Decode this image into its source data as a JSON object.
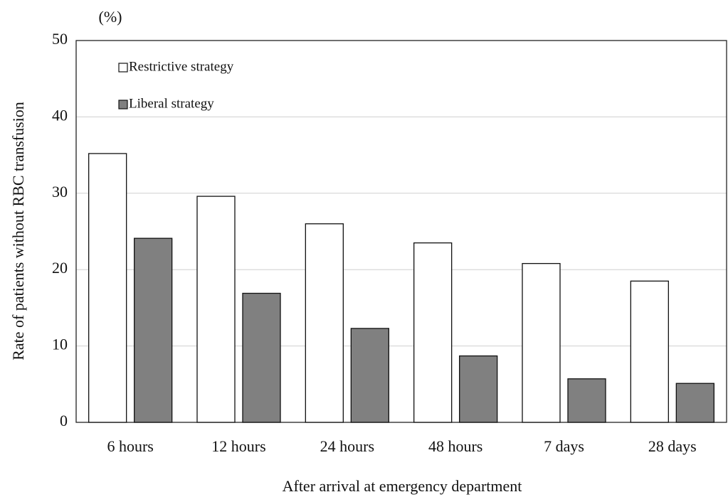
{
  "chart_data": {
    "type": "bar",
    "y_unit": "(%)",
    "ylabel": "Rate of patients without RBC transfusion",
    "xlabel": "After arrival at emergency department",
    "categories": [
      "6 hours",
      "12 hours",
      "24 hours",
      "48 hours",
      "7 days",
      "28 days"
    ],
    "series": [
      {
        "name": "Restrictive strategy",
        "color": "#ffffff",
        "values": [
          35.2,
          29.6,
          26.0,
          23.5,
          20.8,
          18.5
        ]
      },
      {
        "name": "Liberal strategy",
        "color": "#808080",
        "values": [
          24.1,
          16.9,
          12.3,
          8.7,
          5.7,
          5.1
        ]
      }
    ],
    "ylim": [
      0,
      50
    ],
    "yticks": [
      0,
      10,
      20,
      30,
      40,
      50
    ],
    "grid": true,
    "legend": "upper left"
  }
}
